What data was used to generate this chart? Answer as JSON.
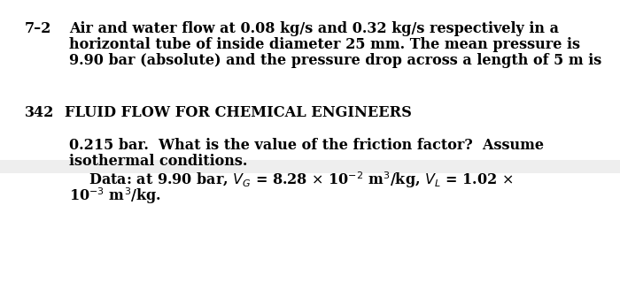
{
  "bg_color": "#eeeeee",
  "white_color": "#ffffff",
  "text_color": "#000000",
  "top_section": {
    "number": "7–2",
    "line1": "Air and water flow at 0.08 kg/s and 0.32 kg/s respectively in a",
    "line2": "horizontal tube of inside diameter 25 mm. The mean pressure is",
    "line3": "9.90 bar (absolute) and the pressure drop across a length of 5 m is"
  },
  "header_section": {
    "page": "342",
    "title": "FLUID FLOW FOR CHEMICAL ENGINEERS"
  },
  "bottom_section": {
    "line1": "0.215 bar.  What is the value of the friction factor?  Assume",
    "line2": "isothermal conditions.",
    "line3_math": "    Data: at 9.90 bar, $V_G$ = 8.28 $\\times$ 10$^{-2}$ m$^3$/kg, $V_L$ = 1.02 $\\times$",
    "line4_math": "10$^{-3}$ m$^3$/kg."
  },
  "font_size_body": 11.5,
  "font_size_header": 11.5
}
